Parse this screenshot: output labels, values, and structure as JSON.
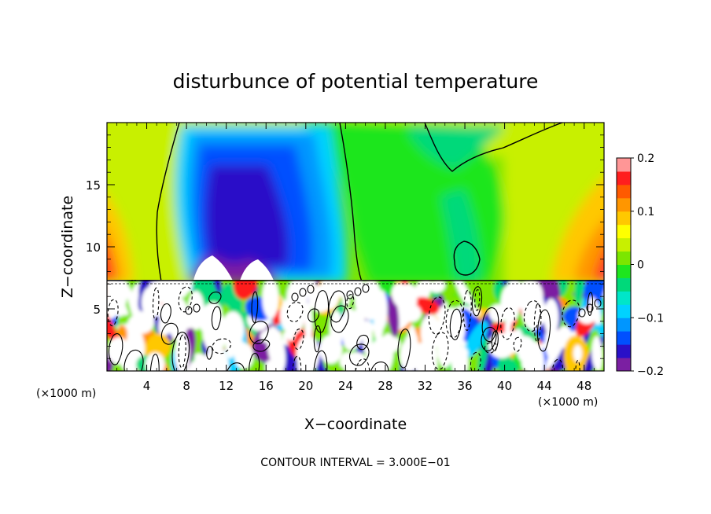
{
  "chart_data": {
    "type": "heatmap",
    "title": "disturbunce of potential temperature",
    "xlabel": "X−coordinate",
    "ylabel": "Z−coordinate",
    "x_unit": "(×1000 m)",
    "y_unit": "(×1000 m)",
    "xlim": [
      0,
      50
    ],
    "ylim": [
      0,
      20
    ],
    "x_ticks": [
      4,
      8,
      12,
      16,
      20,
      24,
      28,
      32,
      36,
      40,
      44,
      48
    ],
    "y_ticks": [
      5,
      10,
      15
    ],
    "colorbar": {
      "range": [
        -0.2,
        0.2
      ],
      "tick_labels": [
        "0.2",
        "0.1",
        "0",
        "−0.1",
        "−0.2"
      ],
      "tick_values": [
        0.2,
        0.1,
        0,
        -0.1,
        -0.2
      ],
      "colors": [
        "#7b1fa2",
        "#2a10c8",
        "#0050ff",
        "#0096ff",
        "#00d2ff",
        "#00e6c8",
        "#00d97a",
        "#1ee61e",
        "#7ce600",
        "#c8f000",
        "#ffff00",
        "#ffc800",
        "#ff9600",
        "#ff5a00",
        "#ff1e1e",
        "#ff9696"
      ]
    },
    "footer": "CONTOUR INTERVAL = 3.000E−01",
    "annotations": [
      "Cold (negative) anomaly column centered near x≈12–16 km, z≈8–18 km",
      "Warm (positive) anomalies near x≈0–2 km and x≈44–50 km at z≈8–14 km",
      "Turbulent mixed layer below z≈7.3 km with alternating positive/negative cells"
    ]
  }
}
